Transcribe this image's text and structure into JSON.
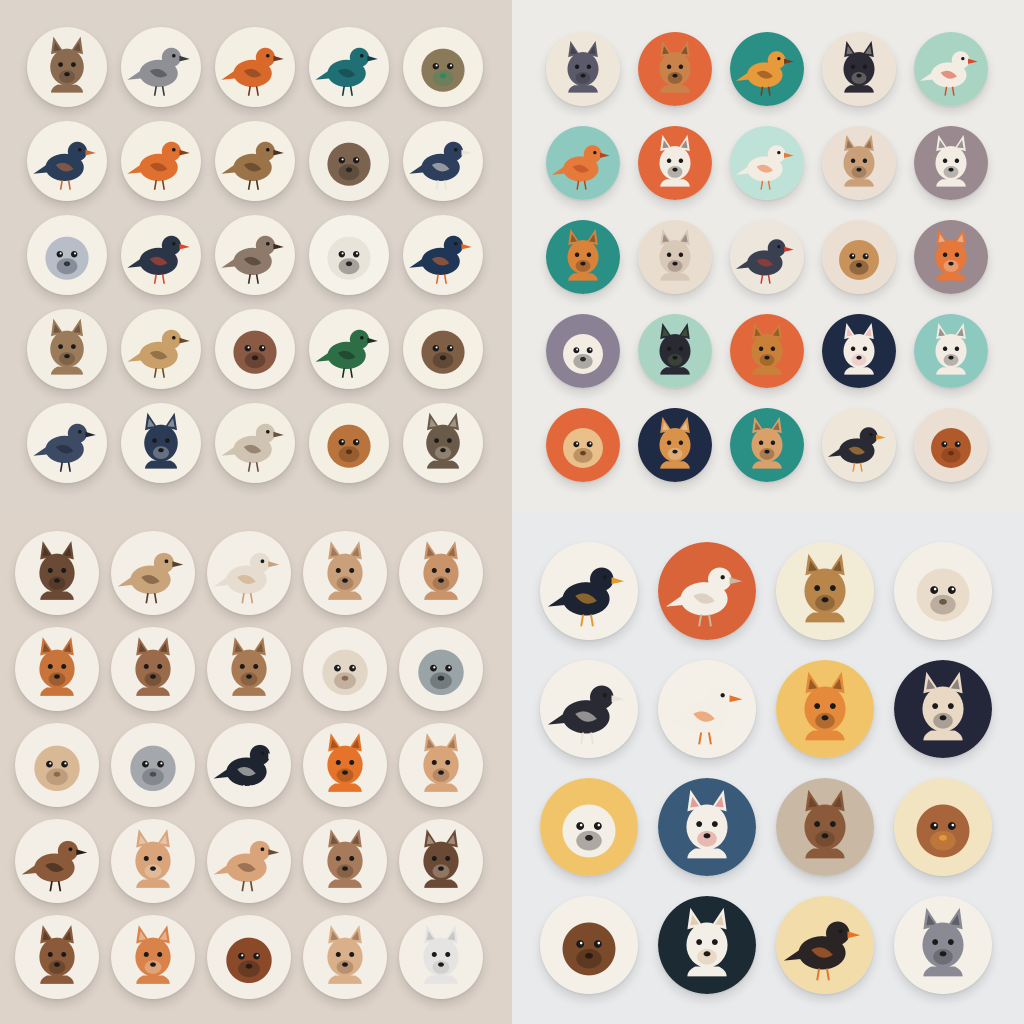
{
  "panels": [
    {
      "id": "top-left",
      "background": "#dcd3ca",
      "icons": [
        {
          "name": "deer-icon",
          "circle": "#f3eee3",
          "animal": "#8b6b4f",
          "accent": "#3b2f28",
          "shape": "mammal"
        },
        {
          "name": "horned-bird-icon",
          "circle": "#f4f0e6",
          "animal": "#8e9095",
          "accent": "#3a3a3a",
          "shape": "bird"
        },
        {
          "name": "robin-icon",
          "circle": "#f4efe3",
          "animal": "#d9692b",
          "accent": "#6b3a20",
          "shape": "bird"
        },
        {
          "name": "teal-bird-icon",
          "circle": "#f4f0e6",
          "animal": "#1f6f74",
          "accent": "#123c44",
          "shape": "bird"
        },
        {
          "name": "fluffy-bird-icon",
          "circle": "#f4f0e4",
          "animal": "#8a7a5a",
          "accent": "#2e8a5b",
          "shape": "round"
        },
        {
          "name": "dark-blue-bird-icon",
          "circle": "#f4f0e6",
          "animal": "#2a3e5a",
          "accent": "#c66a3a",
          "shape": "bird"
        },
        {
          "name": "orange-bird-icon",
          "circle": "#f4efe3",
          "animal": "#e07030",
          "accent": "#8a3d18",
          "shape": "bird"
        },
        {
          "name": "brown-bird-icon",
          "circle": "#f4f0e4",
          "animal": "#9a7448",
          "accent": "#4a3220",
          "shape": "bird"
        },
        {
          "name": "owl-icon",
          "circle": "#f3eee3",
          "animal": "#7b6350",
          "accent": "#2c241e",
          "shape": "round"
        },
        {
          "name": "swallow-icon",
          "circle": "#f4f0e6",
          "animal": "#2d3f5c",
          "accent": "#e9e4da",
          "shape": "bird"
        },
        {
          "name": "white-bird-icon",
          "circle": "#f4f0e6",
          "animal": "#b7bec8",
          "accent": "#2d3642",
          "shape": "round"
        },
        {
          "name": "guinea-fowl-icon",
          "circle": "#f4efe3",
          "animal": "#2b3548",
          "accent": "#d9492b",
          "shape": "bird"
        },
        {
          "name": "sparrow-icon",
          "circle": "#f4f0e6",
          "animal": "#8d7a6a",
          "accent": "#3a2c22",
          "shape": "bird"
        },
        {
          "name": "lamb-icon",
          "circle": "#f5f2ea",
          "animal": "#e9e4da",
          "accent": "#2a2624",
          "shape": "round"
        },
        {
          "name": "kingfisher-icon",
          "circle": "#f4f0e6",
          "animal": "#1f3656",
          "accent": "#dd6a2a",
          "shape": "bird"
        },
        {
          "name": "rabbit-icon",
          "circle": "#f3eee3",
          "animal": "#9c7b5a",
          "accent": "#3e2d20",
          "shape": "mammal"
        },
        {
          "name": "quail-icon",
          "circle": "#f4efe3",
          "animal": "#c9a06a",
          "accent": "#6a4a2a",
          "shape": "bird"
        },
        {
          "name": "koala-icon",
          "circle": "#f4f0e6",
          "animal": "#8b5a44",
          "accent": "#2a1c16",
          "shape": "round"
        },
        {
          "name": "green-bird-icon",
          "circle": "#f4f0e6",
          "animal": "#2e6e46",
          "accent": "#1a2e22",
          "shape": "bird"
        },
        {
          "name": "brown-owl-icon",
          "circle": "#f4f0e4",
          "animal": "#7e5f46",
          "accent": "#2a211a",
          "shape": "round"
        },
        {
          "name": "pigeon-icon",
          "circle": "#f4f0e6",
          "animal": "#3d4a64",
          "accent": "#1e2534",
          "shape": "bird"
        },
        {
          "name": "cat-icon",
          "circle": "#f4f0e6",
          "animal": "#2b3a55",
          "accent": "#f2efe8",
          "shape": "mammal"
        },
        {
          "name": "white-owl-icon",
          "circle": "#f4efe3",
          "animal": "#cfc4b2",
          "accent": "#6b5040",
          "shape": "bird"
        },
        {
          "name": "lion-icon",
          "circle": "#f4efe3",
          "animal": "#b8743c",
          "accent": "#5a3418",
          "shape": "round"
        },
        {
          "name": "otter-icon",
          "circle": "#f4f0e6",
          "animal": "#6a5a4a",
          "accent": "#e6ddd0",
          "shape": "mammal"
        }
      ]
    },
    {
      "id": "top-right",
      "background": "#ecebe8",
      "icons": [
        {
          "name": "bat-icon",
          "circle": "#efe6da",
          "animal": "#5a5a6a",
          "accent": "#2a2830",
          "shape": "mammal"
        },
        {
          "name": "dog-icon",
          "circle": "#e2683c",
          "animal": "#c9834a",
          "accent": "#2a1c14",
          "shape": "mammal"
        },
        {
          "name": "finch-icon",
          "circle": "#2a8f84",
          "animal": "#e79a3a",
          "accent": "#7a3a1a",
          "shape": "bird"
        },
        {
          "name": "black-fox-icon",
          "circle": "#ede2d6",
          "animal": "#2c2a34",
          "accent": "#d8cfc4",
          "shape": "mammal"
        },
        {
          "name": "woodpecker-icon",
          "circle": "#a9d4c4",
          "animal": "#f2ece2",
          "accent": "#d9492b",
          "shape": "bird"
        },
        {
          "name": "parrot-icon",
          "circle": "#8ec9c0",
          "animal": "#e57a3a",
          "accent": "#b54422",
          "shape": "bird"
        },
        {
          "name": "spaniel-icon",
          "circle": "#e2683c",
          "animal": "#f2ece2",
          "accent": "#222222",
          "shape": "mammal"
        },
        {
          "name": "seagull-icon",
          "circle": "#bfe2d8",
          "animal": "#f2ece2",
          "accent": "#e5783a",
          "shape": "bird"
        },
        {
          "name": "fox-icon",
          "circle": "#eadfd2",
          "animal": "#c9a07a",
          "accent": "#5a3e2a",
          "shape": "mammal"
        },
        {
          "name": "husky-icon",
          "circle": "#9a8a90",
          "animal": "#f2ece2",
          "accent": "#2a2a34",
          "shape": "mammal"
        },
        {
          "name": "squirrel-icon",
          "circle": "#2a8f84",
          "animal": "#d9823a",
          "accent": "#3a2a1a",
          "shape": "mammal"
        },
        {
          "name": "mouse-icon",
          "circle": "#e9ddd0",
          "animal": "#d8c8b8",
          "accent": "#5a4a40",
          "shape": "mammal"
        },
        {
          "name": "magpie-icon",
          "circle": "#ece6dc",
          "animal": "#3a4050",
          "accent": "#c93a2a",
          "shape": "bird"
        },
        {
          "name": "pug-icon",
          "circle": "#eadfd2",
          "animal": "#c9925a",
          "accent": "#2a1c14",
          "shape": "round"
        },
        {
          "name": "red-fox-icon",
          "circle": "#9a8a90",
          "animal": "#e5783a",
          "accent": "#f2ece2",
          "shape": "mammal"
        },
        {
          "name": "seal-icon",
          "circle": "#8a8294",
          "animal": "#f2ece2",
          "accent": "#2a2a2a",
          "shape": "round"
        },
        {
          "name": "horse-icon",
          "circle": "#a9d4c4",
          "animal": "#2a2a34",
          "accent": "#5a7a3a",
          "shape": "mammal"
        },
        {
          "name": "retriever-icon",
          "circle": "#e2683c",
          "animal": "#c9813a",
          "accent": "#5a2e14",
          "shape": "mammal"
        },
        {
          "name": "lamb-face-icon",
          "circle": "#1f2a44",
          "animal": "#f2ece2",
          "accent": "#e58a9a",
          "shape": "mammal"
        },
        {
          "name": "terrier-icon",
          "circle": "#8ec9c0",
          "animal": "#f2ece2",
          "accent": "#2a2a2a",
          "shape": "mammal"
        },
        {
          "name": "lion-cub-icon",
          "circle": "#e2683c",
          "animal": "#e9c08a",
          "accent": "#6a4020",
          "shape": "round"
        },
        {
          "name": "kangaroo-icon",
          "circle": "#1f2a44",
          "animal": "#d9924a",
          "accent": "#f2ece2",
          "shape": "mammal"
        },
        {
          "name": "labrador-icon",
          "circle": "#2a8f84",
          "animal": "#d9a06a",
          "accent": "#3a2a1a",
          "shape": "mammal"
        },
        {
          "name": "swallowtail-bird-icon",
          "circle": "#efe6da",
          "animal": "#2a2a34",
          "accent": "#e5983a",
          "shape": "bird"
        },
        {
          "name": "satchel-icon",
          "circle": "#eadfd2",
          "animal": "#b0592a",
          "accent": "#6a2e14",
          "shape": "round"
        }
      ]
    },
    {
      "id": "bottom-left",
      "background": "#ddd3c9",
      "icons": [
        {
          "name": "mole-icon",
          "circle": "#f3eee6",
          "animal": "#6a4a34",
          "accent": "#2a1c14",
          "shape": "mammal"
        },
        {
          "name": "kiwi-bird-icon",
          "circle": "#f3eee6",
          "animal": "#c9a47a",
          "accent": "#5a3e2a",
          "shape": "bird"
        },
        {
          "name": "white-dove-icon",
          "circle": "#f3eee6",
          "animal": "#e6ddd0",
          "accent": "#c9a07a",
          "shape": "bird"
        },
        {
          "name": "fawn-icon",
          "circle": "#f3eee6",
          "animal": "#caa07a",
          "accent": "#6a4a34",
          "shape": "mammal"
        },
        {
          "name": "fennec-icon",
          "circle": "#f3eee6",
          "animal": "#c9946a",
          "accent": "#5a3a22",
          "shape": "mammal"
        },
        {
          "name": "red-panda-icon",
          "circle": "#f3eee6",
          "animal": "#c9743a",
          "accent": "#3a2418",
          "shape": "mammal"
        },
        {
          "name": "wallaby-icon",
          "circle": "#f3eee6",
          "animal": "#9a6a4a",
          "accent": "#2a1c14",
          "shape": "mammal"
        },
        {
          "name": "camel-icon",
          "circle": "#f3eee6",
          "animal": "#a87a54",
          "accent": "#4a3020",
          "shape": "mammal"
        },
        {
          "name": "llama-icon",
          "circle": "#f3eee6",
          "animal": "#e2d6c6",
          "accent": "#8a6a54",
          "shape": "round"
        },
        {
          "name": "grey-seal-icon",
          "circle": "#f3eee6",
          "animal": "#9aa4a6",
          "accent": "#2a3034",
          "shape": "round"
        },
        {
          "name": "hedgehog-icon",
          "circle": "#f3eee6",
          "animal": "#d9b896",
          "accent": "#8a6a4a",
          "shape": "round"
        },
        {
          "name": "gorilla-icon",
          "circle": "#f3eee6",
          "animal": "#a4a8ac",
          "accent": "#4a4e54",
          "shape": "round"
        },
        {
          "name": "orca-icon",
          "circle": "#f3eee6",
          "animal": "#1e2430",
          "accent": "#f2eee6",
          "shape": "bird"
        },
        {
          "name": "orange-fox-icon",
          "circle": "#f3eee6",
          "animal": "#e5742a",
          "accent": "#5a2a12",
          "shape": "mammal"
        },
        {
          "name": "antelope-icon",
          "circle": "#f3eee6",
          "animal": "#d8a47a",
          "accent": "#6a4a34",
          "shape": "mammal"
        },
        {
          "name": "duck-icon",
          "circle": "#f3eee6",
          "animal": "#8a5a3a",
          "accent": "#2a1c14",
          "shape": "bird"
        },
        {
          "name": "gazelle-icon",
          "circle": "#f3eee6",
          "animal": "#d9a47a",
          "accent": "#f2ece2",
          "shape": "mammal"
        },
        {
          "name": "chick-icon",
          "circle": "#f3eee6",
          "animal": "#d9a47a",
          "accent": "#6a4a34",
          "shape": "bird"
        },
        {
          "name": "hare-icon",
          "circle": "#f3eee6",
          "animal": "#a67a5a",
          "accent": "#3a2a1e",
          "shape": "mammal"
        },
        {
          "name": "beaver-icon",
          "circle": "#f3eee6",
          "animal": "#6a4a34",
          "accent": "#e6ddd0",
          "shape": "mammal"
        },
        {
          "name": "brown-deer-icon",
          "circle": "#f3eee6",
          "animal": "#8a5a3a",
          "accent": "#2a1c14",
          "shape": "mammal"
        },
        {
          "name": "corgi-icon",
          "circle": "#f3eee6",
          "animal": "#d9834a",
          "accent": "#f2ece2",
          "shape": "mammal"
        },
        {
          "name": "tall-owl-icon",
          "circle": "#f3eee6",
          "animal": "#8a4a2a",
          "accent": "#2a1c14",
          "shape": "round"
        },
        {
          "name": "meerkat-icon",
          "circle": "#f3eee6",
          "animal": "#d9b08a",
          "accent": "#6a4a34",
          "shape": "mammal"
        },
        {
          "name": "white-rabbit-icon",
          "circle": "#f3eee6",
          "animal": "#e6e4e2",
          "accent": "#a4a4a8",
          "shape": "mammal"
        }
      ]
    },
    {
      "id": "bottom-right",
      "background": "#e9eaec",
      "icons": [
        {
          "name": "puffin-icon",
          "circle": "#f4f0e8",
          "animal": "#1c2333",
          "accent": "#e59a2a",
          "shape": "bird"
        },
        {
          "name": "white-hen-icon",
          "circle": "#d9643a",
          "animal": "#f4efe6",
          "accent": "#c9b8a4",
          "shape": "bird"
        },
        {
          "name": "bear-cub-icon",
          "circle": "#f2ecd6",
          "animal": "#b8854a",
          "accent": "#3a2416",
          "shape": "mammal"
        },
        {
          "name": "sheep-icon",
          "circle": "#f4efe6",
          "animal": "#e9dccb",
          "accent": "#6a5a4a",
          "shape": "round"
        },
        {
          "name": "magpie-bird-icon",
          "circle": "#f4f0e8",
          "animal": "#2a2a34",
          "accent": "#e9e4da",
          "shape": "bird"
        },
        {
          "name": "tern-icon",
          "circle": "#f4f0e8",
          "animal": "#f4efe6",
          "accent": "#e5742a",
          "shape": "bird"
        },
        {
          "name": "fox-owl-icon",
          "circle": "#f2c46a",
          "animal": "#e58a3a",
          "accent": "#3a2416",
          "shape": "mammal"
        },
        {
          "name": "aardvark-icon",
          "circle": "#24263a",
          "animal": "#e9d8c4",
          "accent": "#1a1c28",
          "shape": "mammal"
        },
        {
          "name": "pug-face-icon",
          "circle": "#f2c46a",
          "animal": "#f4efe6",
          "accent": "#2a2424",
          "shape": "round"
        },
        {
          "name": "goat-icon",
          "circle": "#3a5a7a",
          "animal": "#f4efe6",
          "accent": "#c93a3a",
          "shape": "mammal"
        },
        {
          "name": "antler-icon",
          "circle": "#c9b8a4",
          "animal": "#8a5a3a",
          "accent": "#4a2e1e",
          "shape": "mammal"
        },
        {
          "name": "lion-face-icon",
          "circle": "#f2e4c0",
          "animal": "#a8643a",
          "accent": "#e5983a",
          "shape": "round"
        },
        {
          "name": "grizzly-icon",
          "circle": "#f4f0e8",
          "animal": "#7a4a2a",
          "accent": "#2a1a10",
          "shape": "round"
        },
        {
          "name": "deer-face-icon",
          "circle": "#1c2a34",
          "animal": "#f4efe6",
          "accent": "#c9a47a",
          "shape": "mammal"
        },
        {
          "name": "swallow-bird-icon",
          "circle": "#f2dcaa",
          "animal": "#2a2424",
          "accent": "#e5742a",
          "shape": "bird"
        },
        {
          "name": "wolf-icon",
          "circle": "#f4f0e8",
          "animal": "#8a8a94",
          "accent": "#2a2a30",
          "shape": "mammal"
        }
      ]
    }
  ]
}
